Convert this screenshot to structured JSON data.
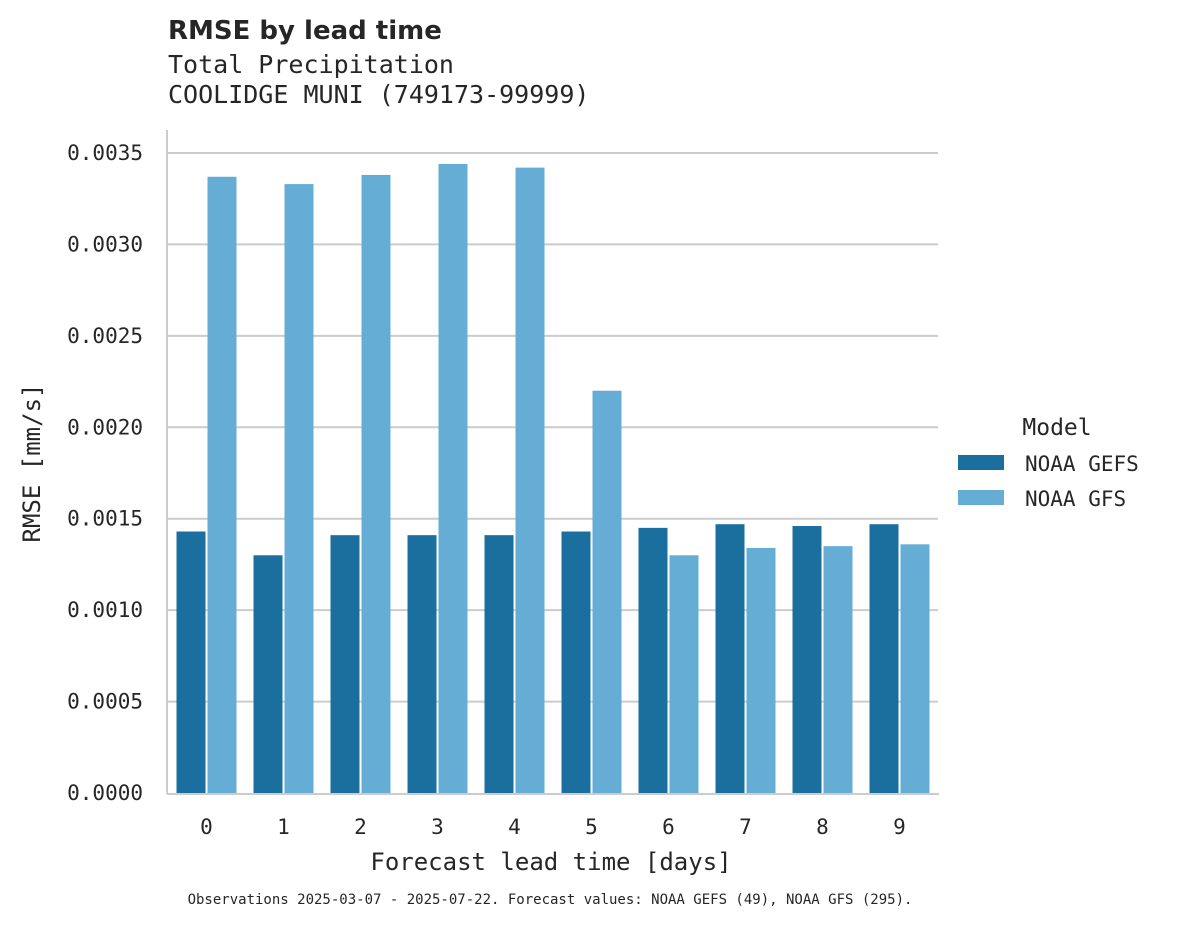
{
  "chart_data": {
    "type": "bar",
    "title": "RMSE by lead time",
    "subtitle": [
      "Total Precipitation",
      "COOLIDGE MUNI (749173-99999)"
    ],
    "xlabel": "Forecast lead time [days]",
    "ylabel": "RMSE [mm/s]",
    "ylim": [
      0,
      0.0036
    ],
    "yticks": [
      "0.0000",
      "0.0005",
      "0.0010",
      "0.0015",
      "0.0020",
      "0.0025",
      "0.0030",
      "0.0035"
    ],
    "categories": [
      "0",
      "1",
      "2",
      "3",
      "4",
      "5",
      "6",
      "7",
      "8",
      "9"
    ],
    "grid": "horizontal",
    "legend": {
      "title": "Model",
      "placement": "right"
    },
    "series": [
      {
        "name": "NOAA GEFS",
        "color": "#1a6f9f",
        "values": [
          0.00143,
          0.0013,
          0.00141,
          0.00141,
          0.00141,
          0.00143,
          0.00145,
          0.00147,
          0.00146,
          0.00147
        ]
      },
      {
        "name": "NOAA GFS",
        "color": "#66add6",
        "values": [
          0.00337,
          0.00333,
          0.00338,
          0.00344,
          0.00342,
          0.0022,
          0.0013,
          0.00134,
          0.00135,
          0.00136
        ]
      }
    ],
    "footnote": "Observations 2025-03-07 - 2025-07-22. Forecast values: NOAA GEFS (49), NOAA GFS (295)."
  }
}
